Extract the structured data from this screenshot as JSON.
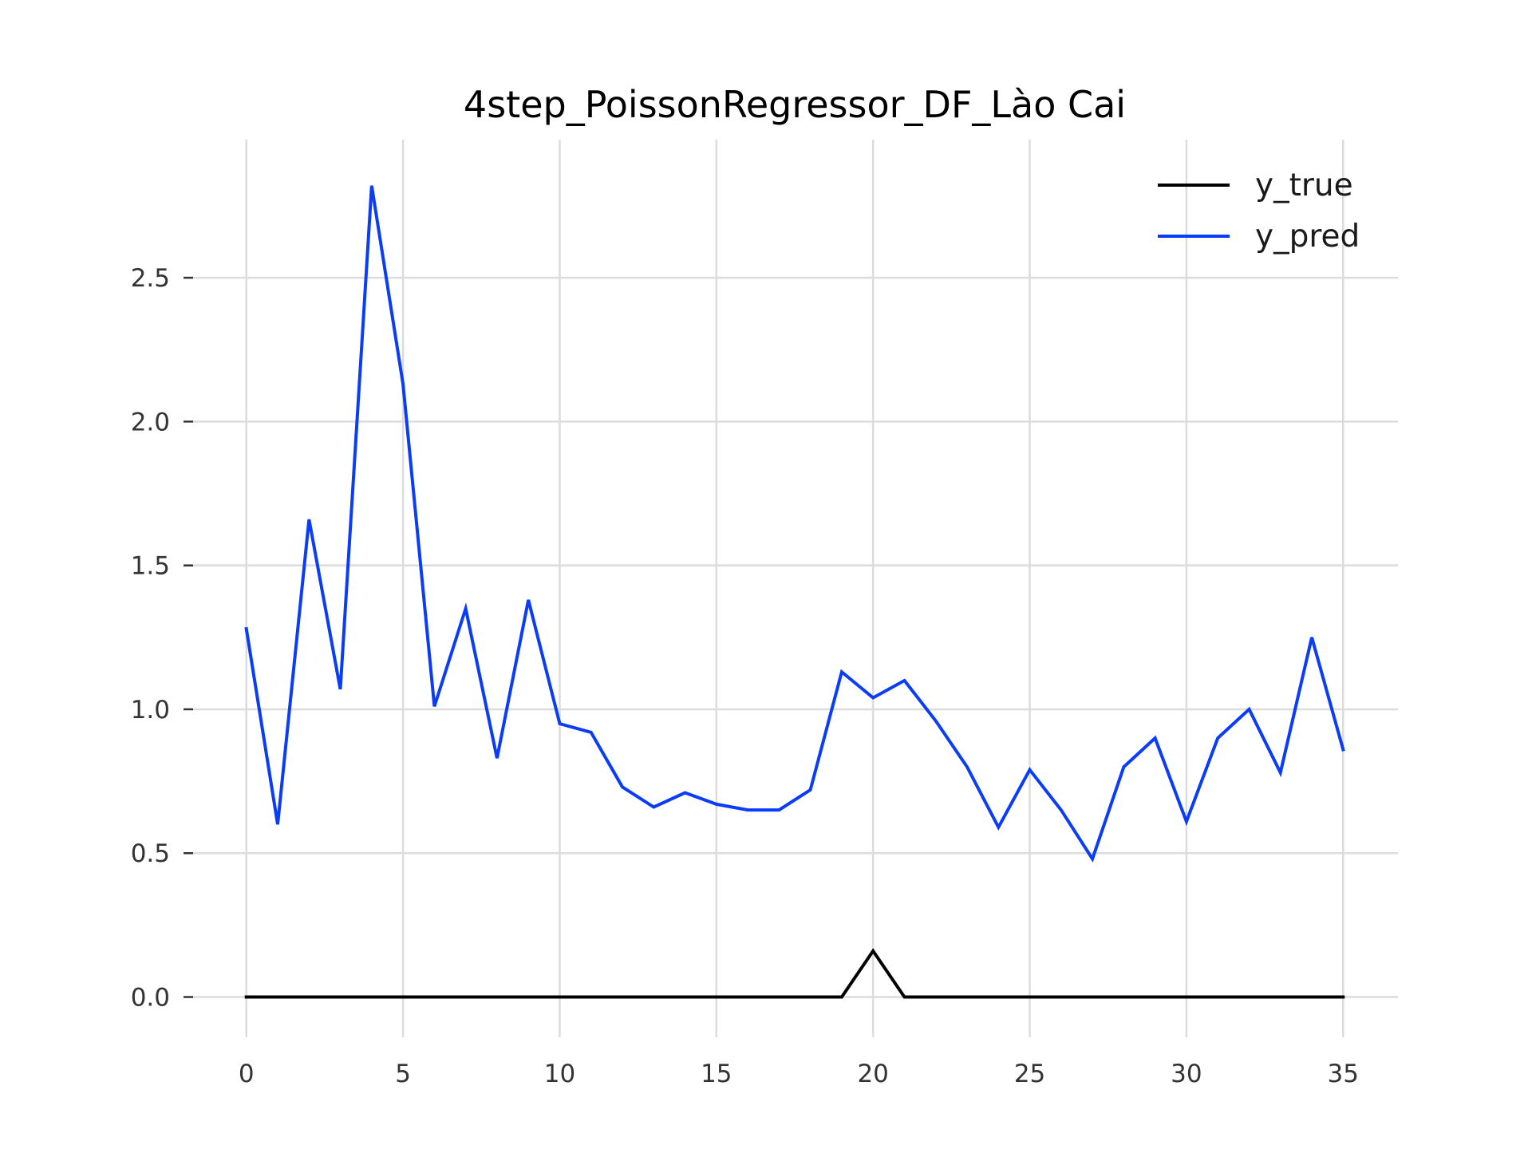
{
  "chart_data": {
    "type": "line",
    "title": "4step_PoissonRegressor_DF_Lào Cai",
    "xlabel": "",
    "ylabel": "",
    "xlim": [
      -1.75,
      36.75
    ],
    "ylim": [
      -0.14,
      2.98
    ],
    "xticks": [
      0,
      5,
      10,
      15,
      20,
      25,
      30,
      35
    ],
    "xtick_labels": [
      "0",
      "5",
      "10",
      "15",
      "20",
      "25",
      "30",
      "35"
    ],
    "yticks": [
      0.0,
      0.5,
      1.0,
      1.5,
      2.0,
      2.5
    ],
    "ytick_labels": [
      "0.0",
      "0.5",
      "1.0",
      "1.5",
      "2.0",
      "2.5"
    ],
    "grid": true,
    "legend_position": "top-right",
    "x": [
      0,
      1,
      2,
      3,
      4,
      5,
      6,
      7,
      8,
      9,
      10,
      11,
      12,
      13,
      14,
      15,
      16,
      17,
      18,
      19,
      20,
      21,
      22,
      23,
      24,
      25,
      26,
      27,
      28,
      29,
      30,
      31,
      32,
      33,
      34,
      35
    ],
    "series": [
      {
        "name": "y_true",
        "color": "#000000",
        "values": [
          0,
          0,
          0,
          0,
          0,
          0,
          0,
          0,
          0,
          0,
          0,
          0,
          0,
          0,
          0,
          0,
          0,
          0,
          0,
          0,
          0.16,
          0,
          0,
          0,
          0,
          0,
          0,
          0,
          0,
          0,
          0,
          0,
          0,
          0,
          0,
          0
        ]
      },
      {
        "name": "y_pred",
        "color": "#0a3cff",
        "values": [
          1.28,
          0.6,
          1.66,
          1.07,
          2.82,
          2.13,
          1.01,
          1.35,
          0.83,
          1.38,
          0.95,
          0.92,
          0.73,
          0.66,
          0.71,
          0.67,
          0.65,
          0.65,
          0.72,
          1.13,
          1.04,
          1.1,
          0.96,
          0.8,
          0.59,
          0.79,
          0.65,
          0.48,
          0.8,
          0.9,
          0.61,
          0.9,
          1.0,
          0.78,
          1.25,
          0.86
        ]
      }
    ]
  }
}
